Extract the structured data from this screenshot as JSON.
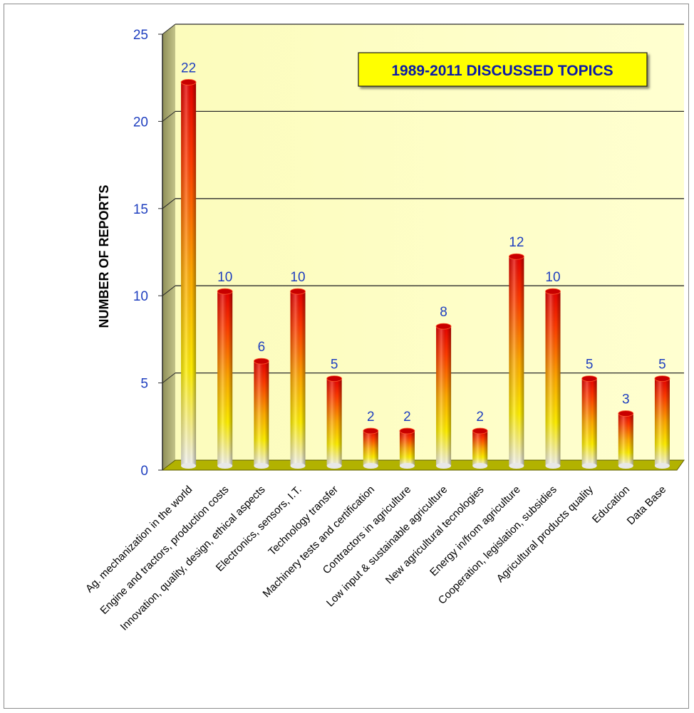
{
  "chart_data": {
    "type": "bar",
    "title": "1989-2011 DISCUSSED TOPICS",
    "ylabel": "NUMBER OF REPORTS",
    "xlabel": "",
    "ylim": [
      0,
      25
    ],
    "yticks": [
      0,
      5,
      10,
      15,
      20,
      25
    ],
    "grid": true,
    "categories": [
      "Ag. mechanization  in the world",
      "Engine and tractors, production costs",
      "Innovation, quality, design, ethical aspects",
      "Electronics, sensors, I.T.",
      "Technology transfer",
      "Machinery tests and certification",
      "Contractors in agriculture",
      "Low input & sustainable agriculture",
      "New agricultural tecnologies",
      "Energy in/from agriculture",
      "Cooperation, legislation, subsidies",
      "Agricultural products quality",
      "Education",
      "Data Base"
    ],
    "values": [
      22,
      10,
      6,
      10,
      5,
      2,
      2,
      8,
      2,
      12,
      10,
      5,
      3,
      5
    ],
    "data_labels": [
      "22",
      "10",
      "6",
      "10",
      "5",
      "2",
      "2",
      "8",
      "2",
      "12",
      "10",
      "5",
      "3",
      "5"
    ],
    "colors": {
      "wall": "#ffffc4",
      "floor": "#b4b400",
      "bar_top": "#e60000",
      "bar_mid": "#ffee00",
      "bar_bottom": "#f2f2f2",
      "tick_text": "#1f3fbf",
      "title_box": "#ffff00",
      "title_text": "#0a1aa8"
    }
  }
}
